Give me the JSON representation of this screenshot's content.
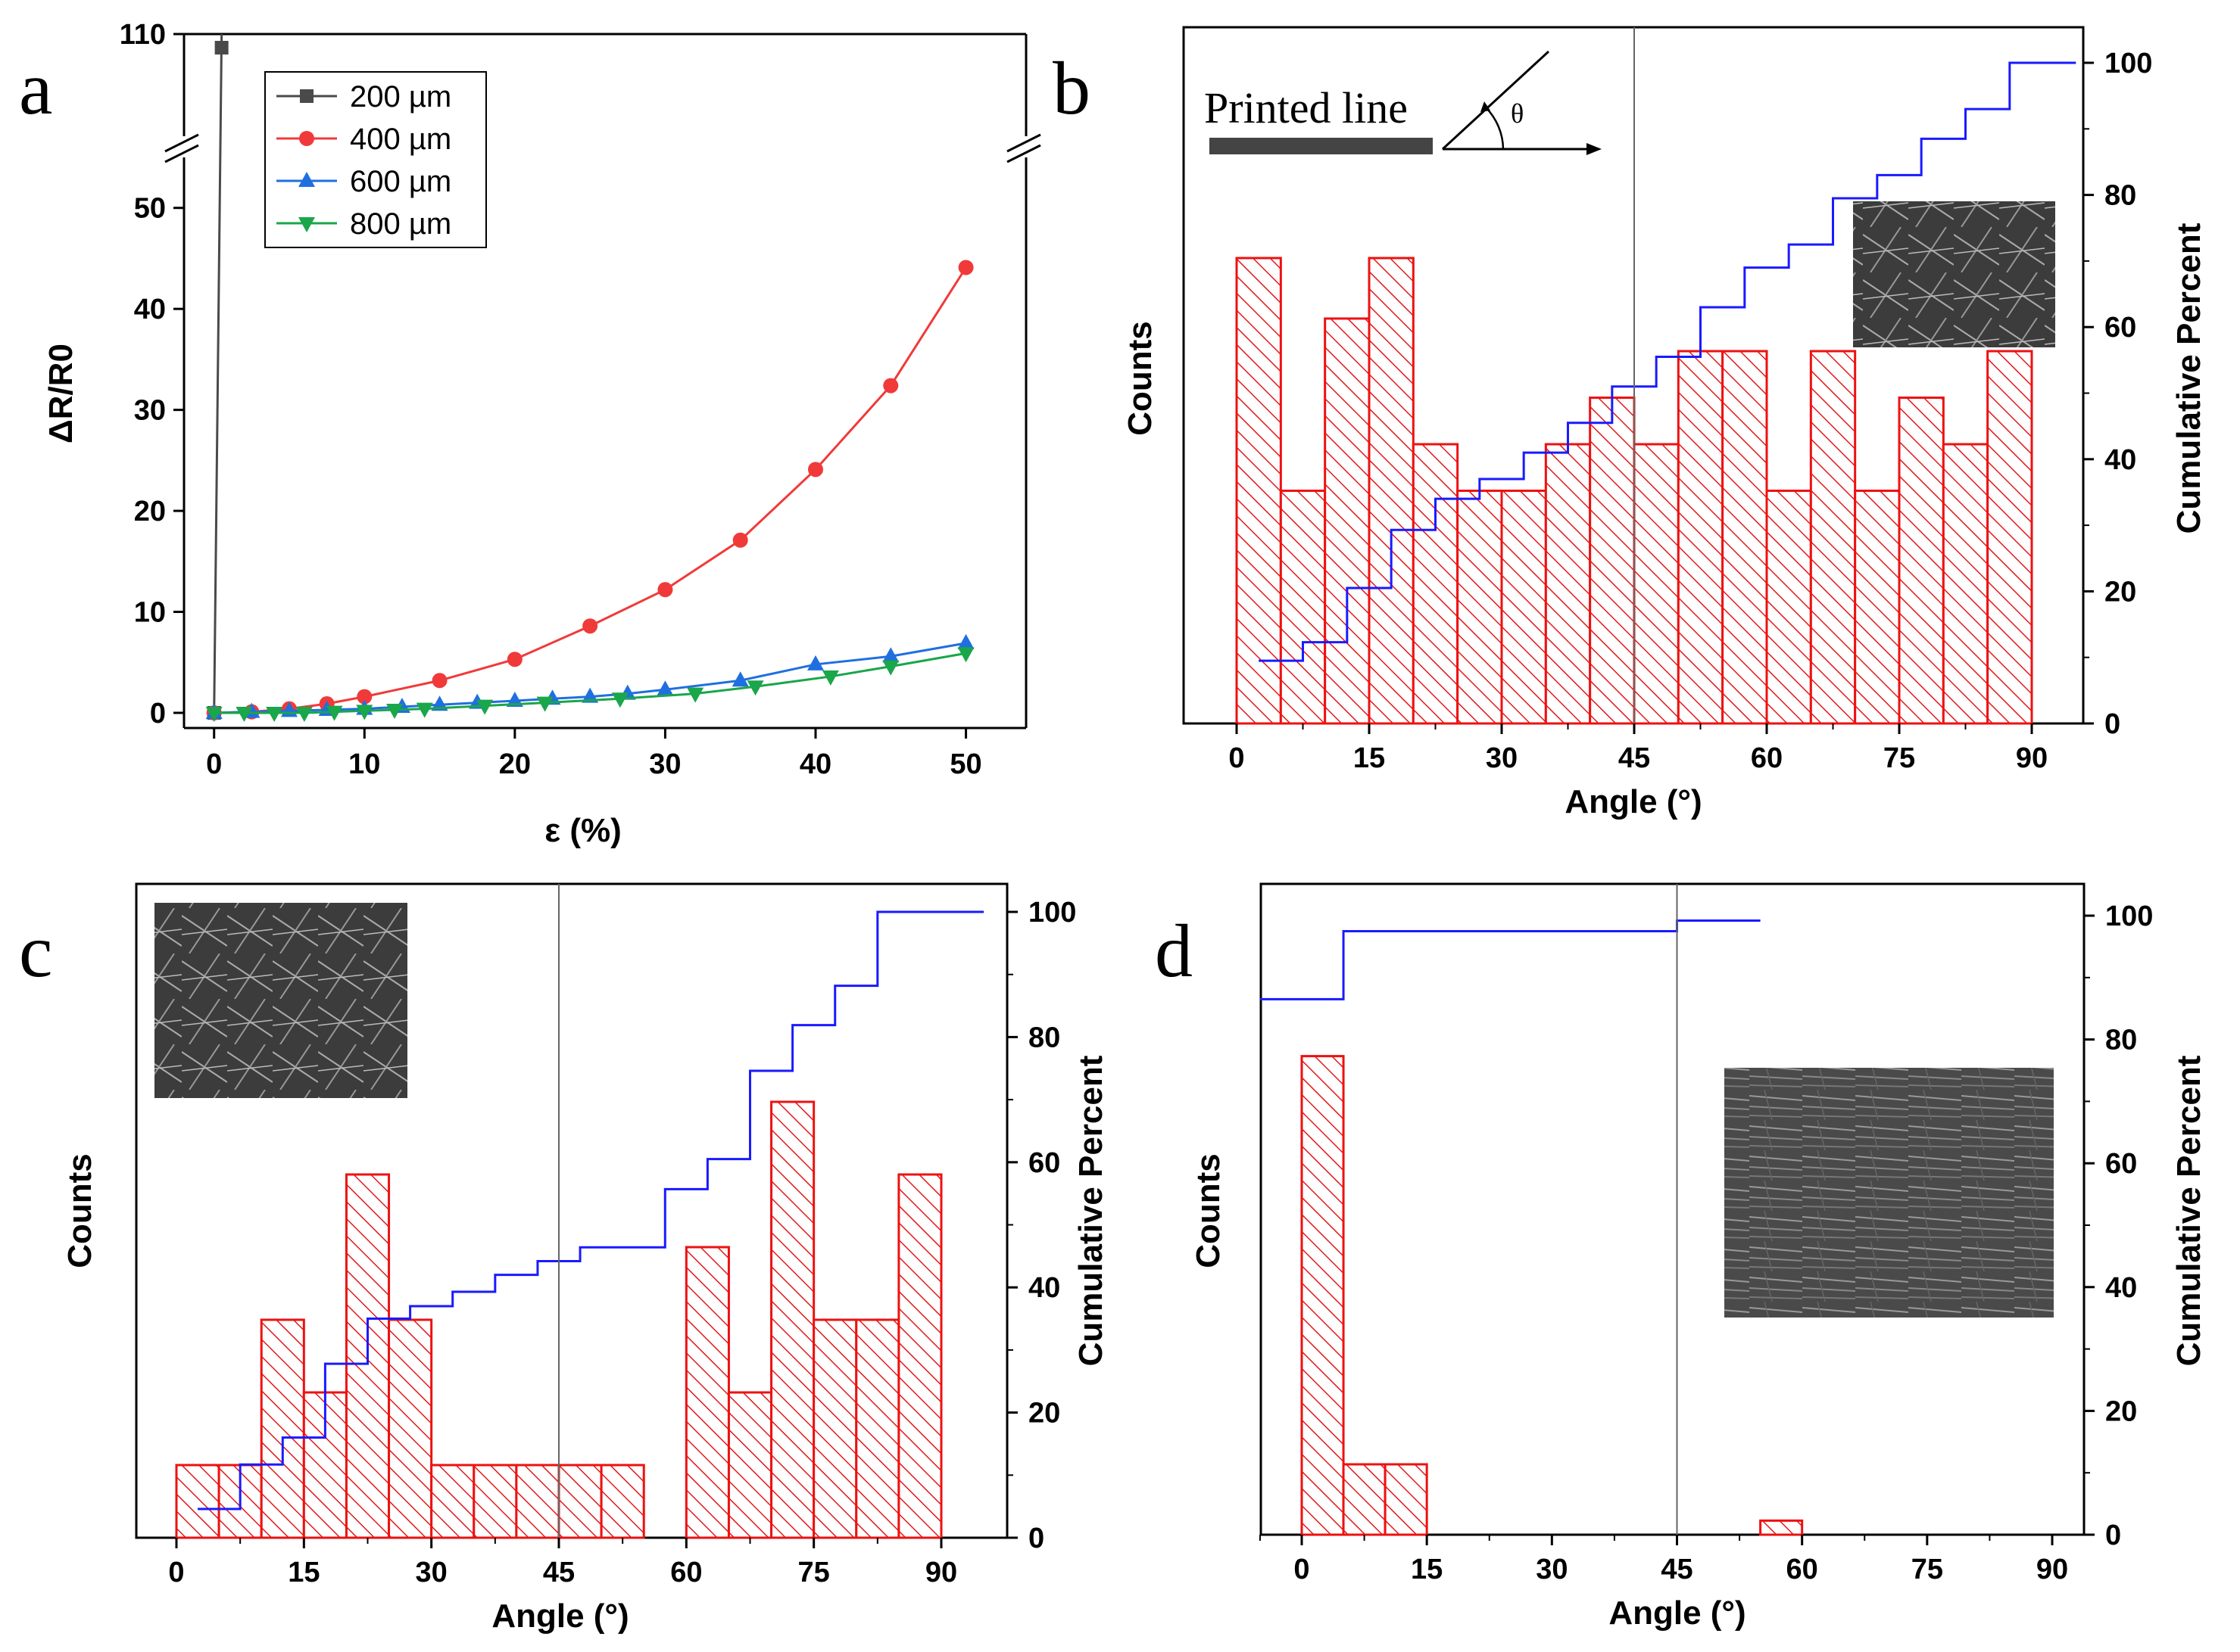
{
  "colors": {
    "s200": "#4a4a4a",
    "s400": "#f03a3a",
    "s600": "#1f6fe0",
    "s800": "#1aa64a",
    "bar": "#e11a1a",
    "cum": "#1a1aff"
  },
  "chart_data": [
    {
      "panel": "a",
      "type": "line",
      "xlabel": "ε (%)",
      "ylabel": "ΔR/R0",
      "xlim": [
        -2,
        54
      ],
      "xticks": [
        0,
        10,
        20,
        30,
        40,
        50
      ],
      "ylim_lower": [
        -1.5,
        55
      ],
      "ylim_upper_tick": 110,
      "yticks": [
        0,
        10,
        20,
        30,
        40,
        50
      ],
      "legend_position": "top-left",
      "series": [
        {
          "name": "200 µm",
          "marker": "square",
          "x": [
            0,
            0.5
          ],
          "y": [
            0,
            105
          ]
        },
        {
          "name": "400 µm",
          "marker": "circle",
          "x": [
            0,
            2.5,
            5,
            7.5,
            10,
            15,
            20,
            25,
            30,
            35,
            40,
            45,
            50
          ],
          "y": [
            0,
            0.1,
            0.4,
            0.9,
            1.6,
            3.2,
            5.3,
            8.6,
            12.2,
            17.1,
            24.1,
            32.4,
            44.1
          ]
        },
        {
          "name": "600 µm",
          "marker": "triangle-up",
          "x": [
            0,
            2.5,
            5,
            7.5,
            10,
            12.5,
            15,
            17.5,
            20,
            22.5,
            25,
            27.5,
            30,
            35,
            40,
            45,
            50
          ],
          "y": [
            0,
            0.1,
            0.2,
            0.3,
            0.4,
            0.6,
            0.8,
            1.0,
            1.2,
            1.4,
            1.6,
            1.9,
            2.3,
            3.2,
            4.8,
            5.6,
            6.9
          ]
        },
        {
          "name": "800 µm",
          "marker": "triangle-down",
          "x": [
            0,
            2,
            4,
            6,
            8,
            10,
            12,
            14,
            18,
            22,
            27,
            32,
            36,
            41,
            45,
            50
          ],
          "y": [
            0,
            0,
            0,
            0,
            0.1,
            0.2,
            0.3,
            0.4,
            0.7,
            1.0,
            1.4,
            1.9,
            2.6,
            3.6,
            4.6,
            5.9
          ]
        }
      ]
    },
    {
      "panel": "b",
      "type": "bar",
      "xlabel": "Angle (°)",
      "ylabel": "Counts",
      "y2label": "Cumulative Percent",
      "xticks": [
        0,
        15,
        30,
        45,
        60,
        75,
        90
      ],
      "y2ticks": [
        0,
        20,
        40,
        60,
        80,
        100
      ],
      "bin_width": 5,
      "bin_starts": [
        0,
        5,
        10,
        15,
        20,
        25,
        30,
        35,
        40,
        45,
        50,
        55,
        60,
        65,
        70,
        75,
        80,
        85
      ],
      "counts": [
        10,
        5,
        8.7,
        10,
        6,
        5,
        5,
        6,
        7,
        6,
        8,
        8,
        5,
        8,
        5,
        7,
        6,
        8
      ],
      "cumulative": [
        9.5,
        12.3,
        20.5,
        29.3,
        34,
        37,
        41,
        45.5,
        51,
        55.5,
        63,
        69,
        72.5,
        79.5,
        83,
        88.5,
        93,
        100
      ],
      "annotation_label": "Printed line",
      "angle_symbol": "θ"
    },
    {
      "panel": "c",
      "type": "bar",
      "xlabel": "Angle (°)",
      "ylabel": "Counts",
      "y2label": "Cumulative Percent",
      "xticks": [
        0,
        15,
        30,
        45,
        60,
        75,
        90
      ],
      "y2ticks": [
        0,
        20,
        40,
        60,
        80,
        100
      ],
      "bin_width": 5,
      "bin_starts": [
        0,
        5,
        10,
        15,
        20,
        25,
        30,
        35,
        40,
        45,
        50,
        55,
        60,
        65,
        70,
        75,
        80,
        85
      ],
      "counts": [
        1,
        1,
        3,
        2,
        5,
        3,
        1,
        1,
        1,
        1,
        1,
        0,
        4,
        2,
        6,
        3,
        3,
        5
      ],
      "cumulative": [
        4.6,
        11.7,
        16,
        27.8,
        35,
        37,
        39.3,
        42,
        44.2,
        46.4,
        46.4,
        55.7,
        60.5,
        74.6,
        81.9,
        88.2,
        100,
        100
      ]
    },
    {
      "panel": "d",
      "type": "bar",
      "xlabel": "Angle (°)",
      "ylabel": "Counts",
      "y2label": "Cumulative Percent",
      "xticks": [
        0,
        15,
        30,
        45,
        60,
        75,
        90
      ],
      "y2ticks": [
        0,
        20,
        40,
        60,
        80,
        100
      ],
      "bin_width": 5,
      "bin_starts": [
        0,
        5,
        10,
        55
      ],
      "counts": [
        34,
        5,
        5,
        1
      ],
      "cumulative_steps": [
        {
          "from": -5,
          "to": 5,
          "value": 86.5
        },
        {
          "from": 5,
          "to": 45,
          "value": 97.5
        },
        {
          "from": 45,
          "to": 55,
          "value": 99.2
        }
      ]
    }
  ],
  "panels": {
    "a": "a",
    "b": "b",
    "c": "c",
    "d": "d"
  }
}
